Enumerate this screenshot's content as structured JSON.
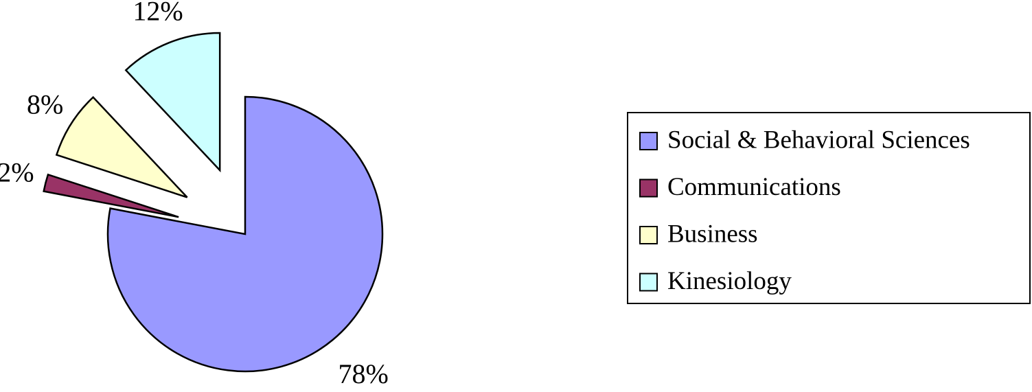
{
  "chart_data": {
    "type": "pie",
    "categories": [
      "Social & Behavioral Sciences",
      "Communications",
      "Business",
      "Kinesiology"
    ],
    "values": [
      78,
      2,
      8,
      12
    ],
    "value_labels": [
      "78%",
      "2%",
      "8%",
      "12%"
    ],
    "colors": [
      "#9999ff",
      "#993366",
      "#ffffcc",
      "#ccffff"
    ],
    "legend": "right"
  }
}
